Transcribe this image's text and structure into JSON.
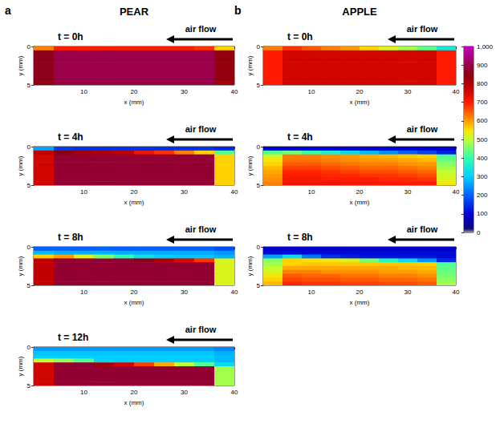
{
  "chart_data": [
    {
      "type": "heatmap",
      "panel": "a",
      "title": "PEAR",
      "annotation": "air flow",
      "xlabel": "x (mm)",
      "ylabel": "y (mm)",
      "xlim": [
        0,
        40
      ],
      "ylim": [
        0,
        5
      ],
      "xticks": [
        10,
        20,
        30,
        40
      ],
      "yticks": [
        0,
        5
      ],
      "x": [
        2,
        6,
        10,
        14,
        18,
        22,
        26,
        30,
        34,
        38
      ],
      "y": [
        0.25,
        0.75,
        1.25,
        1.75,
        2.25,
        2.75,
        3.25,
        3.75,
        4.25,
        4.75
      ],
      "frames": [
        {
          "title": "t = 0h",
          "cells": [
            [
              620,
              700,
              700,
              700,
              700,
              700,
              700,
              700,
              680,
              560
            ],
            [
              860,
              900,
              900,
              900,
              900,
              900,
              900,
              900,
              900,
              840
            ],
            [
              860,
              900,
              900,
              900,
              900,
              900,
              900,
              900,
              900,
              840
            ],
            [
              860,
              900,
              900,
              900,
              900,
              900,
              900,
              900,
              900,
              840
            ],
            [
              860,
              900,
              900,
              900,
              900,
              900,
              900,
              900,
              900,
              840
            ],
            [
              860,
              900,
              900,
              900,
              900,
              900,
              900,
              900,
              900,
              840
            ],
            [
              860,
              900,
              900,
              900,
              900,
              900,
              900,
              900,
              900,
              840
            ],
            [
              860,
              900,
              900,
              900,
              900,
              900,
              900,
              900,
              900,
              840
            ],
            [
              860,
              900,
              900,
              900,
              900,
              900,
              900,
              900,
              900,
              840
            ],
            [
              840,
              890,
              890,
              890,
              890,
              890,
              890,
              890,
              890,
              820
            ]
          ]
        },
        {
          "title": "t = 4h",
          "cells": [
            [
              260,
              160,
              150,
              150,
              150,
              150,
              150,
              150,
              150,
              140
            ],
            [
              780,
              850,
              820,
              800,
              780,
              720,
              680,
              620,
              560,
              420
            ],
            [
              760,
              880,
              880,
              880,
              880,
              880,
              880,
              880,
              880,
              560
            ],
            [
              760,
              880,
              880,
              880,
              880,
              880,
              880,
              880,
              880,
              560
            ],
            [
              760,
              880,
              880,
              880,
              880,
              880,
              880,
              880,
              880,
              560
            ],
            [
              760,
              880,
              880,
              880,
              880,
              880,
              880,
              880,
              880,
              560
            ],
            [
              760,
              880,
              880,
              880,
              880,
              880,
              880,
              880,
              880,
              560
            ],
            [
              760,
              880,
              880,
              880,
              880,
              880,
              880,
              880,
              880,
              560
            ],
            [
              760,
              880,
              880,
              880,
              880,
              880,
              880,
              880,
              880,
              560
            ],
            [
              760,
              880,
              880,
              880,
              880,
              880,
              880,
              880,
              880,
              560
            ]
          ]
        },
        {
          "title": "t = 8h",
          "cells": [
            [
              200,
              200,
              200,
              200,
              200,
              200,
              200,
              200,
              200,
              180
            ],
            [
              280,
              270,
              270,
              270,
              270,
              270,
              270,
              270,
              270,
              250
            ],
            [
              560,
              600,
              520,
              450,
              390,
              330,
              300,
              290,
              290,
              270
            ],
            [
              780,
              880,
              880,
              880,
              880,
              860,
              800,
              750,
              680,
              520
            ],
            [
              780,
              880,
              880,
              880,
              880,
              880,
              880,
              880,
              880,
              520
            ],
            [
              780,
              880,
              880,
              880,
              880,
              880,
              880,
              880,
              880,
              520
            ],
            [
              780,
              880,
              880,
              880,
              880,
              880,
              880,
              880,
              880,
              520
            ],
            [
              780,
              880,
              880,
              880,
              880,
              880,
              880,
              880,
              880,
              520
            ],
            [
              780,
              880,
              880,
              880,
              880,
              880,
              880,
              880,
              880,
              520
            ],
            [
              780,
              880,
              880,
              880,
              880,
              880,
              880,
              880,
              880,
              520
            ]
          ]
        },
        {
          "title": "t = 12h",
          "cells": [
            [
              250,
              250,
              250,
              250,
              250,
              250,
              250,
              250,
              250,
              230
            ],
            [
              290,
              290,
              290,
              290,
              290,
              290,
              290,
              290,
              290,
              270
            ],
            [
              300,
              300,
              300,
              300,
              300,
              300,
              300,
              300,
              300,
              280
            ],
            [
              500,
              470,
              420,
              310,
              300,
              300,
              300,
              300,
              300,
              280
            ],
            [
              760,
              880,
              880,
              820,
              760,
              670,
              590,
              500,
              420,
              320
            ],
            [
              760,
              880,
              880,
              880,
              880,
              880,
              880,
              880,
              880,
              480
            ],
            [
              760,
              880,
              880,
              880,
              880,
              880,
              880,
              880,
              880,
              480
            ],
            [
              760,
              880,
              880,
              880,
              880,
              880,
              880,
              880,
              880,
              480
            ],
            [
              760,
              880,
              880,
              880,
              880,
              880,
              880,
              880,
              880,
              480
            ],
            [
              760,
              880,
              880,
              880,
              880,
              880,
              880,
              880,
              880,
              480
            ]
          ]
        }
      ]
    },
    {
      "type": "heatmap",
      "panel": "b",
      "title": "APPLE",
      "annotation": "air flow",
      "xlabel": "x (mm)",
      "ylabel": "y (mm)",
      "xlim": [
        0,
        40
      ],
      "ylim": [
        0,
        5
      ],
      "xticks": [
        10,
        20,
        30,
        40
      ],
      "yticks": [
        0,
        5
      ],
      "x": [
        2,
        6,
        10,
        14,
        18,
        22,
        26,
        30,
        34,
        38
      ],
      "y": [
        0.25,
        0.75,
        1.25,
        1.75,
        2.25,
        2.75,
        3.25,
        3.75,
        4.25,
        4.75
      ],
      "colorbar": {
        "range": [
          0,
          1000
        ],
        "ticks": [
          0,
          100,
          200,
          300,
          400,
          500,
          600,
          700,
          800,
          900,
          1000
        ]
      },
      "frames": [
        {
          "title": "t = 0h",
          "cells": [
            [
              620,
              680,
              650,
              620,
              600,
              560,
              520,
              480,
              430,
              350
            ],
            [
              700,
              760,
              760,
              760,
              760,
              760,
              760,
              760,
              760,
              700
            ],
            [
              700,
              760,
              760,
              760,
              760,
              760,
              760,
              760,
              760,
              700
            ],
            [
              700,
              760,
              760,
              760,
              760,
              760,
              760,
              760,
              760,
              700
            ],
            [
              700,
              760,
              760,
              760,
              760,
              760,
              760,
              760,
              760,
              700
            ],
            [
              700,
              760,
              760,
              760,
              760,
              760,
              760,
              760,
              760,
              700
            ],
            [
              700,
              760,
              760,
              760,
              760,
              760,
              760,
              760,
              760,
              700
            ],
            [
              700,
              760,
              760,
              760,
              760,
              760,
              760,
              760,
              760,
              700
            ],
            [
              700,
              760,
              760,
              760,
              760,
              760,
              760,
              760,
              760,
              700
            ],
            [
              700,
              760,
              760,
              760,
              760,
              760,
              760,
              760,
              760,
              700
            ]
          ]
        },
        {
          "title": "t = 4h",
          "cells": [
            [
              100,
              100,
              100,
              100,
              100,
              100,
              100,
              100,
              100,
              100
            ],
            [
              420,
              440,
              400,
              360,
              320,
              280,
              240,
              200,
              170,
              130
            ],
            [
              520,
              620,
              620,
              610,
              600,
              590,
              580,
              570,
              560,
              420
            ],
            [
              540,
              630,
              630,
              620,
              610,
              600,
              600,
              590,
              580,
              440
            ],
            [
              560,
              650,
              650,
              640,
              630,
              620,
              620,
              610,
              600,
              460
            ],
            [
              580,
              670,
              670,
              660,
              650,
              640,
              640,
              630,
              620,
              480
            ],
            [
              590,
              690,
              690,
              680,
              670,
              660,
              660,
              650,
              640,
              500
            ],
            [
              600,
              700,
              700,
              690,
              690,
              680,
              680,
              670,
              660,
              510
            ],
            [
              610,
              710,
              710,
              700,
              700,
              700,
              690,
              690,
              680,
              520
            ],
            [
              620,
              720,
              720,
              720,
              710,
              710,
              700,
              700,
              700,
              540
            ]
          ]
        },
        {
          "title": "t = 8h",
          "cells": [
            [
              90,
              90,
              90,
              90,
              90,
              90,
              90,
              90,
              90,
              90
            ],
            [
              110,
              110,
              110,
              110,
              110,
              110,
              110,
              110,
              110,
              110
            ],
            [
              260,
              320,
              220,
              150,
              130,
              120,
              120,
              120,
              120,
              110
            ],
            [
              460,
              560,
              550,
              540,
              520,
              450,
              380,
              320,
              250,
              140
            ],
            [
              480,
              560,
              570,
              570,
              570,
              570,
              570,
              570,
              560,
              420
            ],
            [
              500,
              590,
              590,
              590,
              590,
              590,
              590,
              580,
              580,
              430
            ],
            [
              520,
              620,
              620,
              610,
              610,
              610,
              600,
              600,
              590,
              440
            ],
            [
              540,
              650,
              640,
              640,
              630,
              630,
              620,
              620,
              610,
              450
            ],
            [
              560,
              670,
              660,
              660,
              650,
              650,
              640,
              640,
              630,
              460
            ],
            [
              580,
              690,
              680,
              680,
              670,
              670,
              660,
              660,
              650,
              480
            ]
          ]
        }
      ]
    }
  ]
}
